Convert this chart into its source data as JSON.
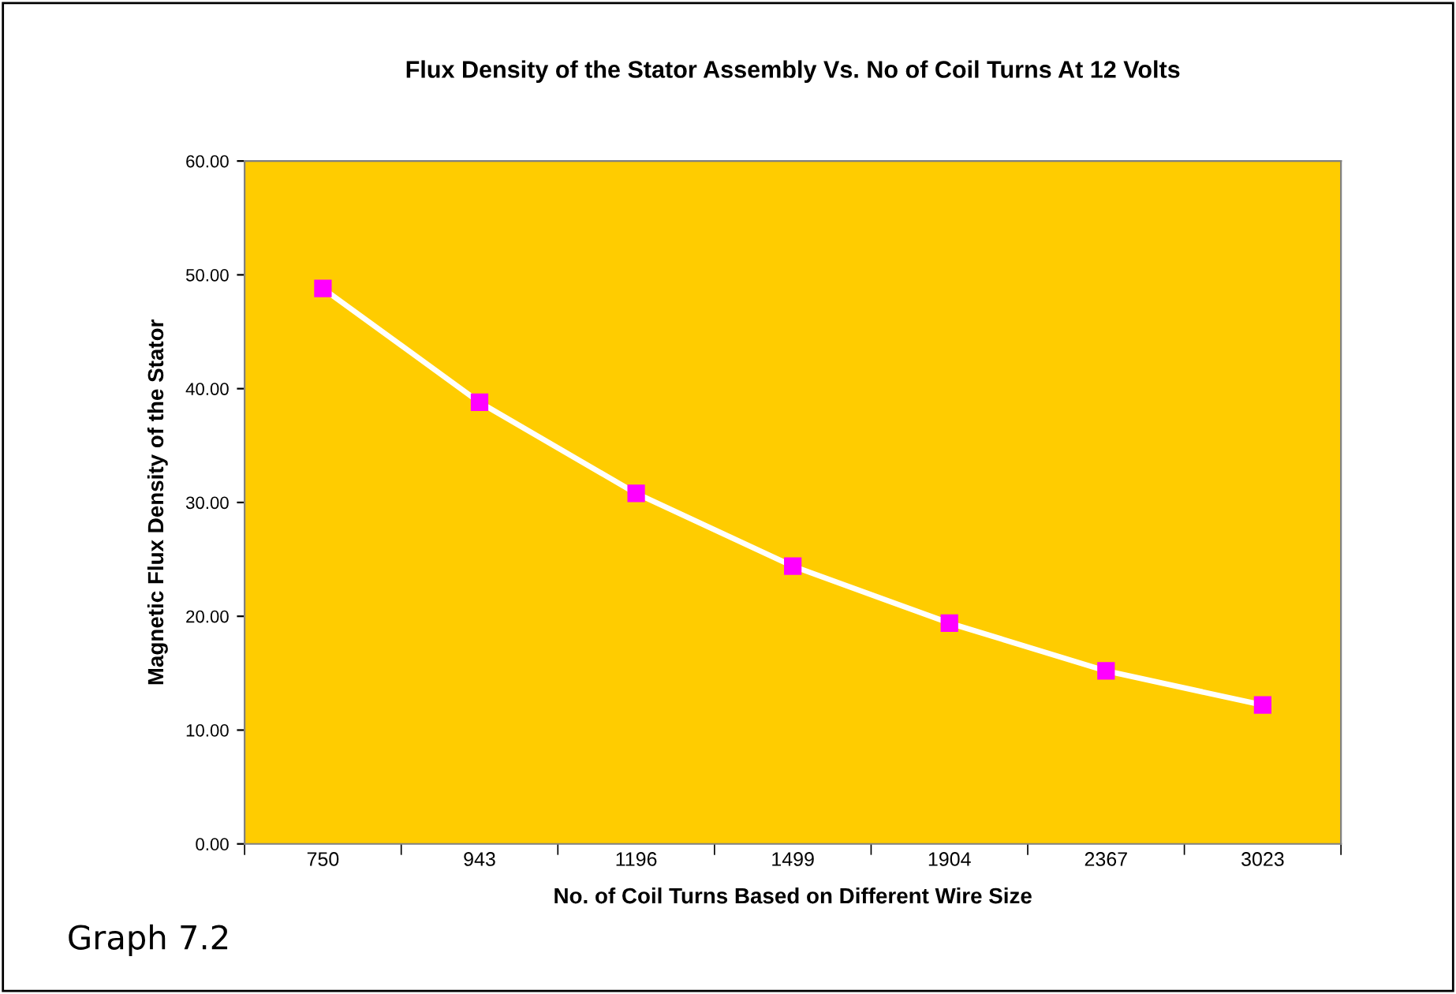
{
  "chart_data": {
    "type": "line",
    "title": "Flux Density of the Stator Assembly Vs. No of Coil Turns At 12 Volts",
    "xlabel": "No. of Coil Turns Based on Different Wire Size",
    "ylabel": "Magnetic Flux Density of the Stator",
    "categories": [
      "750",
      "943",
      "1196",
      "1499",
      "1904",
      "2367",
      "3023"
    ],
    "series": [
      {
        "color": "#ffffff",
        "values": [
          48.8,
          38.8,
          30.8,
          24.4,
          19.4,
          15.2,
          12.2
        ]
      }
    ],
    "marker": "square",
    "ylim": [
      0,
      60
    ],
    "yticks": [
      {
        "value": 0,
        "label": "0.00"
      },
      {
        "value": 10,
        "label": "10.00"
      },
      {
        "value": 20,
        "label": "20.00"
      },
      {
        "value": 30,
        "label": "30.00"
      },
      {
        "value": 40,
        "label": "40.00"
      },
      {
        "value": 50,
        "label": "50.00"
      },
      {
        "value": 60,
        "label": "60.00"
      }
    ],
    "grid": false,
    "annotations": [
      "Graph 7.2"
    ]
  }
}
